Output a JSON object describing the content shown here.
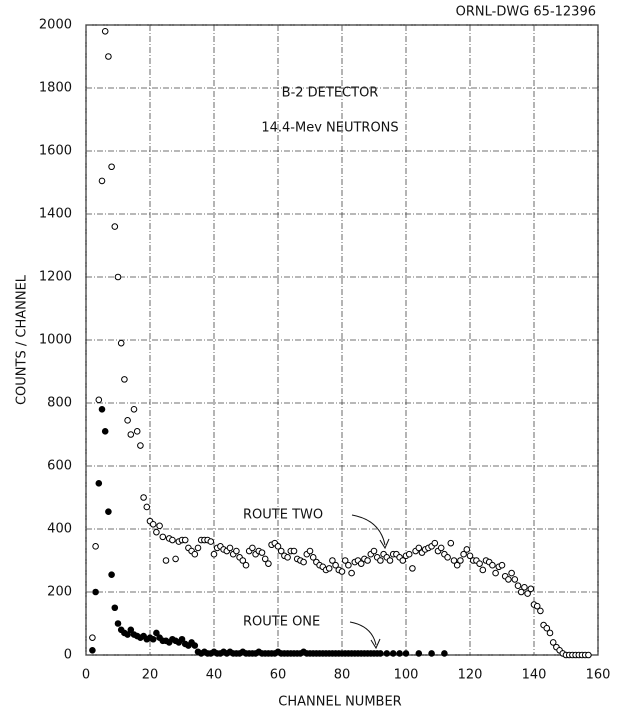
{
  "chart_data": {
    "type": "scatter",
    "drawing_number": "ORNL-DWG 65-12396",
    "annotations": [
      "B-2 DETECTOR",
      "14.4-Mev NEUTRONS"
    ],
    "xlabel": "CHANNEL NUMBER",
    "ylabel": "COUNTS / CHANNEL",
    "xlim": [
      0,
      160
    ],
    "xticks": [
      0,
      20,
      40,
      60,
      80,
      100,
      120,
      140,
      160
    ],
    "ylim": [
      0,
      2000
    ],
    "yticks": [
      0,
      200,
      400,
      600,
      800,
      1000,
      1200,
      1400,
      1600,
      1800,
      2000
    ],
    "grid": true,
    "series": [
      {
        "name": "ROUTE TWO",
        "color": "#000000",
        "marker": "open",
        "x": [
          2,
          3,
          4,
          5,
          6,
          7,
          8,
          9,
          10,
          11,
          12,
          13,
          14,
          15,
          16,
          17,
          18,
          19,
          20,
          21,
          22,
          23,
          24,
          25,
          26,
          27,
          28,
          29,
          30,
          31,
          32,
          33,
          34,
          35,
          36,
          37,
          38,
          39,
          40,
          41,
          42,
          43,
          44,
          45,
          46,
          47,
          48,
          49,
          50,
          51,
          52,
          53,
          54,
          55,
          56,
          57,
          58,
          59,
          60,
          61,
          62,
          63,
          64,
          65,
          66,
          67,
          68,
          69,
          70,
          71,
          72,
          73,
          74,
          75,
          76,
          77,
          78,
          79,
          80,
          81,
          82,
          83,
          84,
          85,
          86,
          87,
          88,
          89,
          90,
          91,
          92,
          93,
          94,
          95,
          96,
          97,
          98,
          99,
          100,
          101,
          102,
          103,
          104,
          105,
          106,
          107,
          108,
          109,
          110,
          111,
          112,
          113,
          114,
          115,
          116,
          117,
          118,
          119,
          120,
          121,
          122,
          123,
          124,
          125,
          126,
          127,
          128,
          129,
          130,
          131,
          132,
          133,
          134,
          135,
          136,
          137,
          138,
          139,
          140,
          141,
          142,
          143,
          144,
          145,
          146,
          147,
          148,
          149,
          150,
          151,
          152,
          153,
          154,
          155,
          156,
          157
        ],
        "values": [
          55,
          345,
          810,
          1505,
          1980,
          1900,
          1550,
          1360,
          1200,
          990,
          875,
          745,
          700,
          780,
          710,
          665,
          500,
          470,
          425,
          415,
          390,
          410,
          375,
          300,
          370,
          365,
          305,
          360,
          365,
          365,
          340,
          330,
          320,
          340,
          365,
          365,
          365,
          360,
          320,
          340,
          345,
          335,
          330,
          340,
          320,
          330,
          310,
          300,
          285,
          330,
          340,
          320,
          330,
          325,
          305,
          290,
          350,
          355,
          345,
          330,
          315,
          310,
          330,
          330,
          305,
          300,
          295,
          320,
          330,
          310,
          295,
          285,
          280,
          270,
          275,
          300,
          285,
          270,
          265,
          300,
          285,
          260,
          295,
          300,
          290,
          305,
          300,
          320,
          330,
          310,
          300,
          320,
          310,
          300,
          320,
          320,
          310,
          300,
          315,
          320,
          275,
          330,
          340,
          325,
          335,
          340,
          345,
          355,
          330,
          340,
          320,
          310,
          355,
          300,
          285,
          300,
          320,
          335,
          315,
          300,
          300,
          290,
          270,
          300,
          295,
          285,
          260,
          280,
          285,
          250,
          240,
          260,
          240,
          220,
          200,
          215,
          195,
          210,
          160,
          155,
          140,
          95,
          85,
          70,
          40,
          25,
          15,
          5,
          0,
          0,
          0,
          0,
          0,
          0,
          0,
          0
        ]
      },
      {
        "name": "ROUTE ONE",
        "color": "#000000",
        "marker": "filled",
        "x": [
          2,
          3,
          4,
          5,
          6,
          7,
          8,
          9,
          10,
          11,
          12,
          13,
          14,
          15,
          16,
          17,
          18,
          19,
          20,
          21,
          22,
          23,
          24,
          25,
          26,
          27,
          28,
          29,
          30,
          31,
          32,
          33,
          34,
          35,
          36,
          37,
          38,
          39,
          40,
          41,
          42,
          43,
          44,
          45,
          46,
          47,
          48,
          49,
          50,
          51,
          52,
          53,
          54,
          55,
          56,
          57,
          58,
          59,
          60,
          61,
          62,
          63,
          64,
          65,
          66,
          67,
          68,
          69,
          70,
          71,
          72,
          73,
          74,
          75,
          76,
          77,
          78,
          79,
          80,
          81,
          82,
          83,
          84,
          85,
          86,
          87,
          88,
          89,
          90,
          91,
          92,
          94,
          96,
          98,
          100,
          104,
          108,
          112
        ],
        "values": [
          15,
          200,
          545,
          780,
          710,
          455,
          255,
          150,
          100,
          80,
          70,
          65,
          80,
          65,
          60,
          55,
          60,
          50,
          55,
          50,
          70,
          55,
          45,
          45,
          40,
          50,
          45,
          40,
          50,
          35,
          30,
          40,
          30,
          10,
          5,
          10,
          5,
          5,
          10,
          5,
          5,
          10,
          5,
          10,
          5,
          5,
          5,
          10,
          5,
          5,
          5,
          5,
          10,
          5,
          5,
          5,
          5,
          5,
          10,
          5,
          5,
          5,
          5,
          5,
          5,
          5,
          10,
          5,
          5,
          5,
          5,
          5,
          5,
          5,
          5,
          5,
          5,
          5,
          5,
          5,
          5,
          5,
          5,
          5,
          5,
          5,
          5,
          5,
          5,
          5,
          5,
          5,
          5,
          5,
          5,
          5,
          5,
          5
        ]
      }
    ]
  }
}
